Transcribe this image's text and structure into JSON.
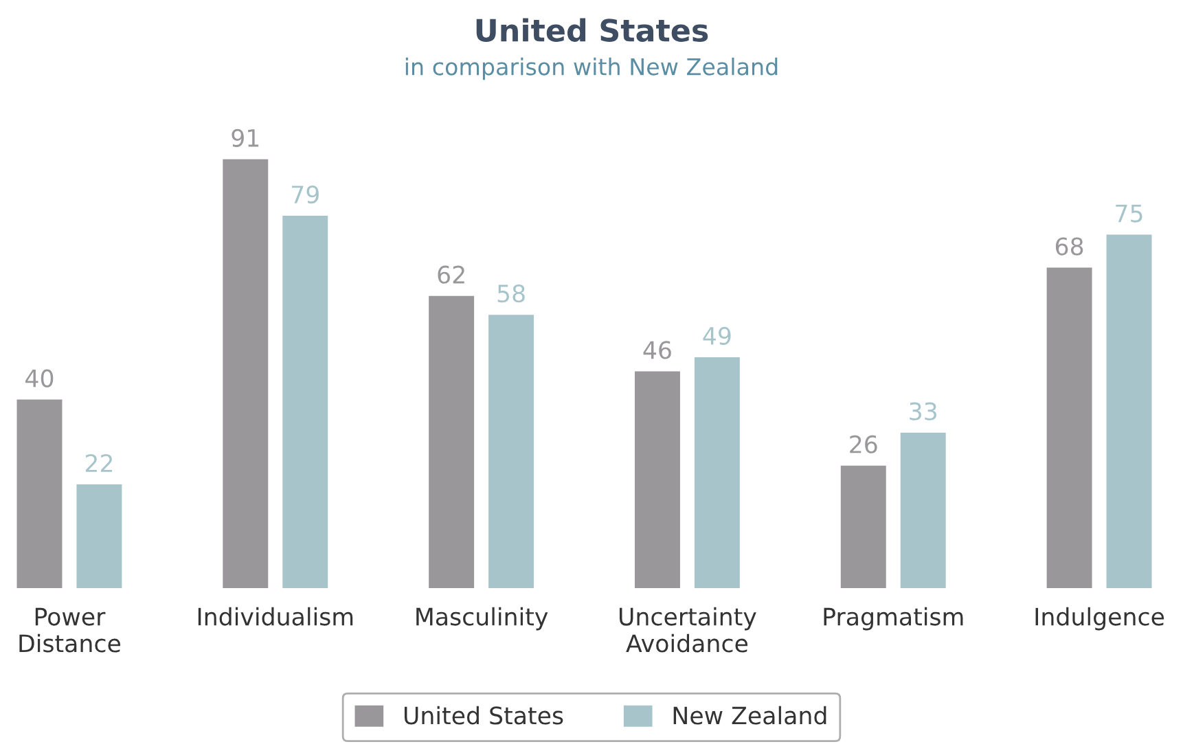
{
  "chart_data": {
    "type": "bar",
    "title": "United States",
    "subtitle": "in comparison with New Zealand",
    "categories": [
      "Power\nDistance",
      "Individualism",
      "Masculinity",
      "Uncertainty\nAvoidance",
      "Pragmatism",
      "Indulgence"
    ],
    "series": [
      {
        "name": "United States",
        "color": "#99979a",
        "values": [
          40,
          91,
          62,
          46,
          26,
          68
        ]
      },
      {
        "name": "New Zealand",
        "color": "#a8c4cb",
        "values": [
          22,
          79,
          58,
          49,
          33,
          75
        ]
      }
    ],
    "data_labels": true,
    "legend": "bottom",
    "grid": false
  }
}
